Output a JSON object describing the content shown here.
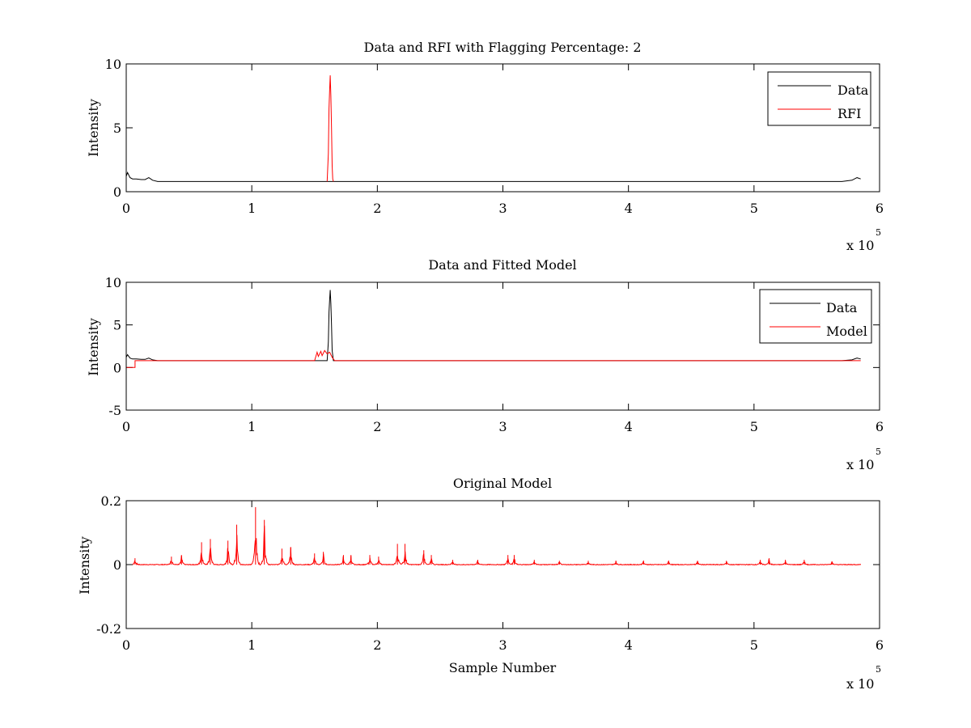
{
  "colors": {
    "data": "#000000",
    "red": "#ff0000",
    "axis": "#000000",
    "background": "#ffffff"
  },
  "chart_data": [
    {
      "type": "line",
      "title": "Data and RFI with Flagging Percentage: 2",
      "xlabel": "",
      "ylabel": "Intensity",
      "xlim": [
        0,
        6
      ],
      "ylim": [
        0,
        10
      ],
      "xticks": [
        "0",
        "1",
        "2",
        "3",
        "4",
        "5",
        "6"
      ],
      "yticks": [
        "0",
        "5",
        "10"
      ],
      "x_multiplier": "x 10",
      "x_multiplier_exp": "5",
      "legend": {
        "placement": "top-right",
        "entries": [
          "Data",
          "RFI"
        ]
      },
      "grid": false,
      "series": [
        {
          "name": "Data",
          "color": "#000000",
          "x": [
            0.0,
            0.01,
            0.03,
            0.05,
            0.08,
            0.12,
            0.15,
            0.18,
            0.21,
            0.25,
            0.4,
            1.0,
            1.5,
            1.6,
            1.68,
            2.0,
            3.0,
            4.0,
            5.0,
            5.7,
            5.78,
            5.82,
            5.85
          ],
          "y": [
            1.2,
            1.5,
            1.1,
            1.0,
            1.0,
            0.95,
            0.95,
            1.1,
            0.9,
            0.8,
            0.8,
            0.8,
            0.8,
            0.8,
            0.8,
            0.8,
            0.8,
            0.8,
            0.8,
            0.8,
            0.9,
            1.1,
            1.0
          ]
        },
        {
          "name": "RFI",
          "color": "#ff0000",
          "x": [
            1.6,
            1.61,
            1.615,
            1.62,
            1.625,
            1.63,
            1.635,
            1.64,
            1.645,
            1.65
          ],
          "y": [
            0.8,
            3.0,
            6.5,
            8.0,
            9.1,
            7.5,
            5.0,
            2.0,
            1.0,
            0.8
          ]
        }
      ]
    },
    {
      "type": "line",
      "title": "Data and Fitted Model",
      "xlabel": "",
      "ylabel": "Intensity",
      "xlim": [
        0,
        6
      ],
      "ylim": [
        -5,
        10
      ],
      "xticks": [
        "0",
        "1",
        "2",
        "3",
        "4",
        "5",
        "6"
      ],
      "yticks": [
        "-5",
        "0",
        "5",
        "10"
      ],
      "x_multiplier": "x 10",
      "x_multiplier_exp": "5",
      "legend": {
        "placement": "top-right",
        "entries": [
          "Data",
          "Model"
        ]
      },
      "grid": false,
      "series": [
        {
          "name": "Data",
          "color": "#000000",
          "x": [
            0.0,
            0.01,
            0.03,
            0.05,
            0.08,
            0.12,
            0.15,
            0.18,
            0.21,
            0.25,
            0.5,
            1.0,
            1.5,
            1.6,
            1.61,
            1.615,
            1.62,
            1.625,
            1.63,
            1.635,
            1.64,
            1.65,
            2.0,
            3.0,
            4.0,
            5.0,
            5.7,
            5.78,
            5.82,
            5.85
          ],
          "y": [
            1.2,
            1.5,
            1.1,
            1.0,
            1.0,
            0.95,
            0.95,
            1.1,
            0.9,
            0.8,
            0.8,
            0.8,
            0.8,
            0.8,
            3.0,
            6.5,
            8.0,
            9.1,
            7.5,
            5.0,
            2.0,
            0.8,
            0.8,
            0.8,
            0.8,
            0.8,
            0.8,
            0.9,
            1.1,
            1.0
          ]
        },
        {
          "name": "Model",
          "color": "#ff0000",
          "x": [
            0.0,
            0.07,
            0.07,
            0.5,
            1.0,
            1.5,
            1.52,
            1.53,
            1.55,
            1.56,
            1.58,
            1.6,
            1.62,
            1.64,
            1.66,
            2.0,
            3.0,
            4.0,
            5.0,
            5.85
          ],
          "y": [
            0.0,
            0.0,
            0.8,
            0.8,
            0.8,
            0.8,
            1.8,
            1.3,
            1.9,
            1.4,
            2.0,
            1.6,
            1.8,
            1.2,
            0.8,
            0.8,
            0.8,
            0.8,
            0.8,
            0.8
          ]
        }
      ]
    },
    {
      "type": "line",
      "title": "Original Model",
      "xlabel": "Sample Number",
      "ylabel": "Intensity",
      "xlim": [
        0,
        6
      ],
      "ylim": [
        -0.2,
        0.2
      ],
      "xticks": [
        "0",
        "1",
        "2",
        "3",
        "4",
        "5",
        "6"
      ],
      "yticks": [
        "-0.2",
        "0",
        "0.2"
      ],
      "x_multiplier": "x 10",
      "x_multiplier_exp": "5",
      "grid": false,
      "baseline": 0.0,
      "baseline_x": [
        0.05,
        5.85
      ],
      "series": [
        {
          "color": "#ff0000",
          "peaks": [
            {
              "x": 0.07,
              "y": 0.02
            },
            {
              "x": 0.36,
              "y": 0.025
            },
            {
              "x": 0.44,
              "y": 0.03
            },
            {
              "x": 0.6,
              "y": 0.07
            },
            {
              "x": 0.67,
              "y": 0.08
            },
            {
              "x": 0.81,
              "y": 0.075
            },
            {
              "x": 0.88,
              "y": 0.125
            },
            {
              "x": 1.03,
              "y": 0.18
            },
            {
              "x": 1.1,
              "y": 0.14
            },
            {
              "x": 1.24,
              "y": 0.05
            },
            {
              "x": 1.31,
              "y": 0.055
            },
            {
              "x": 1.5,
              "y": 0.035
            },
            {
              "x": 1.57,
              "y": 0.04
            },
            {
              "x": 1.73,
              "y": 0.03
            },
            {
              "x": 1.79,
              "y": 0.03
            },
            {
              "x": 1.94,
              "y": 0.03
            },
            {
              "x": 2.01,
              "y": 0.025
            },
            {
              "x": 2.16,
              "y": 0.065
            },
            {
              "x": 2.22,
              "y": 0.065
            },
            {
              "x": 2.37,
              "y": 0.045
            },
            {
              "x": 2.43,
              "y": 0.03
            },
            {
              "x": 2.6,
              "y": 0.015
            },
            {
              "x": 2.8,
              "y": 0.015
            },
            {
              "x": 3.04,
              "y": 0.03
            },
            {
              "x": 3.09,
              "y": 0.03
            },
            {
              "x": 3.25,
              "y": 0.015
            },
            {
              "x": 3.45,
              "y": 0.012
            },
            {
              "x": 3.68,
              "y": 0.012
            },
            {
              "x": 3.9,
              "y": 0.012
            },
            {
              "x": 4.12,
              "y": 0.012
            },
            {
              "x": 4.32,
              "y": 0.012
            },
            {
              "x": 4.55,
              "y": 0.012
            },
            {
              "x": 4.78,
              "y": 0.012
            },
            {
              "x": 5.05,
              "y": 0.015
            },
            {
              "x": 5.12,
              "y": 0.02
            },
            {
              "x": 5.25,
              "y": 0.015
            },
            {
              "x": 5.4,
              "y": 0.015
            },
            {
              "x": 5.62,
              "y": 0.01
            }
          ]
        }
      ]
    }
  ]
}
